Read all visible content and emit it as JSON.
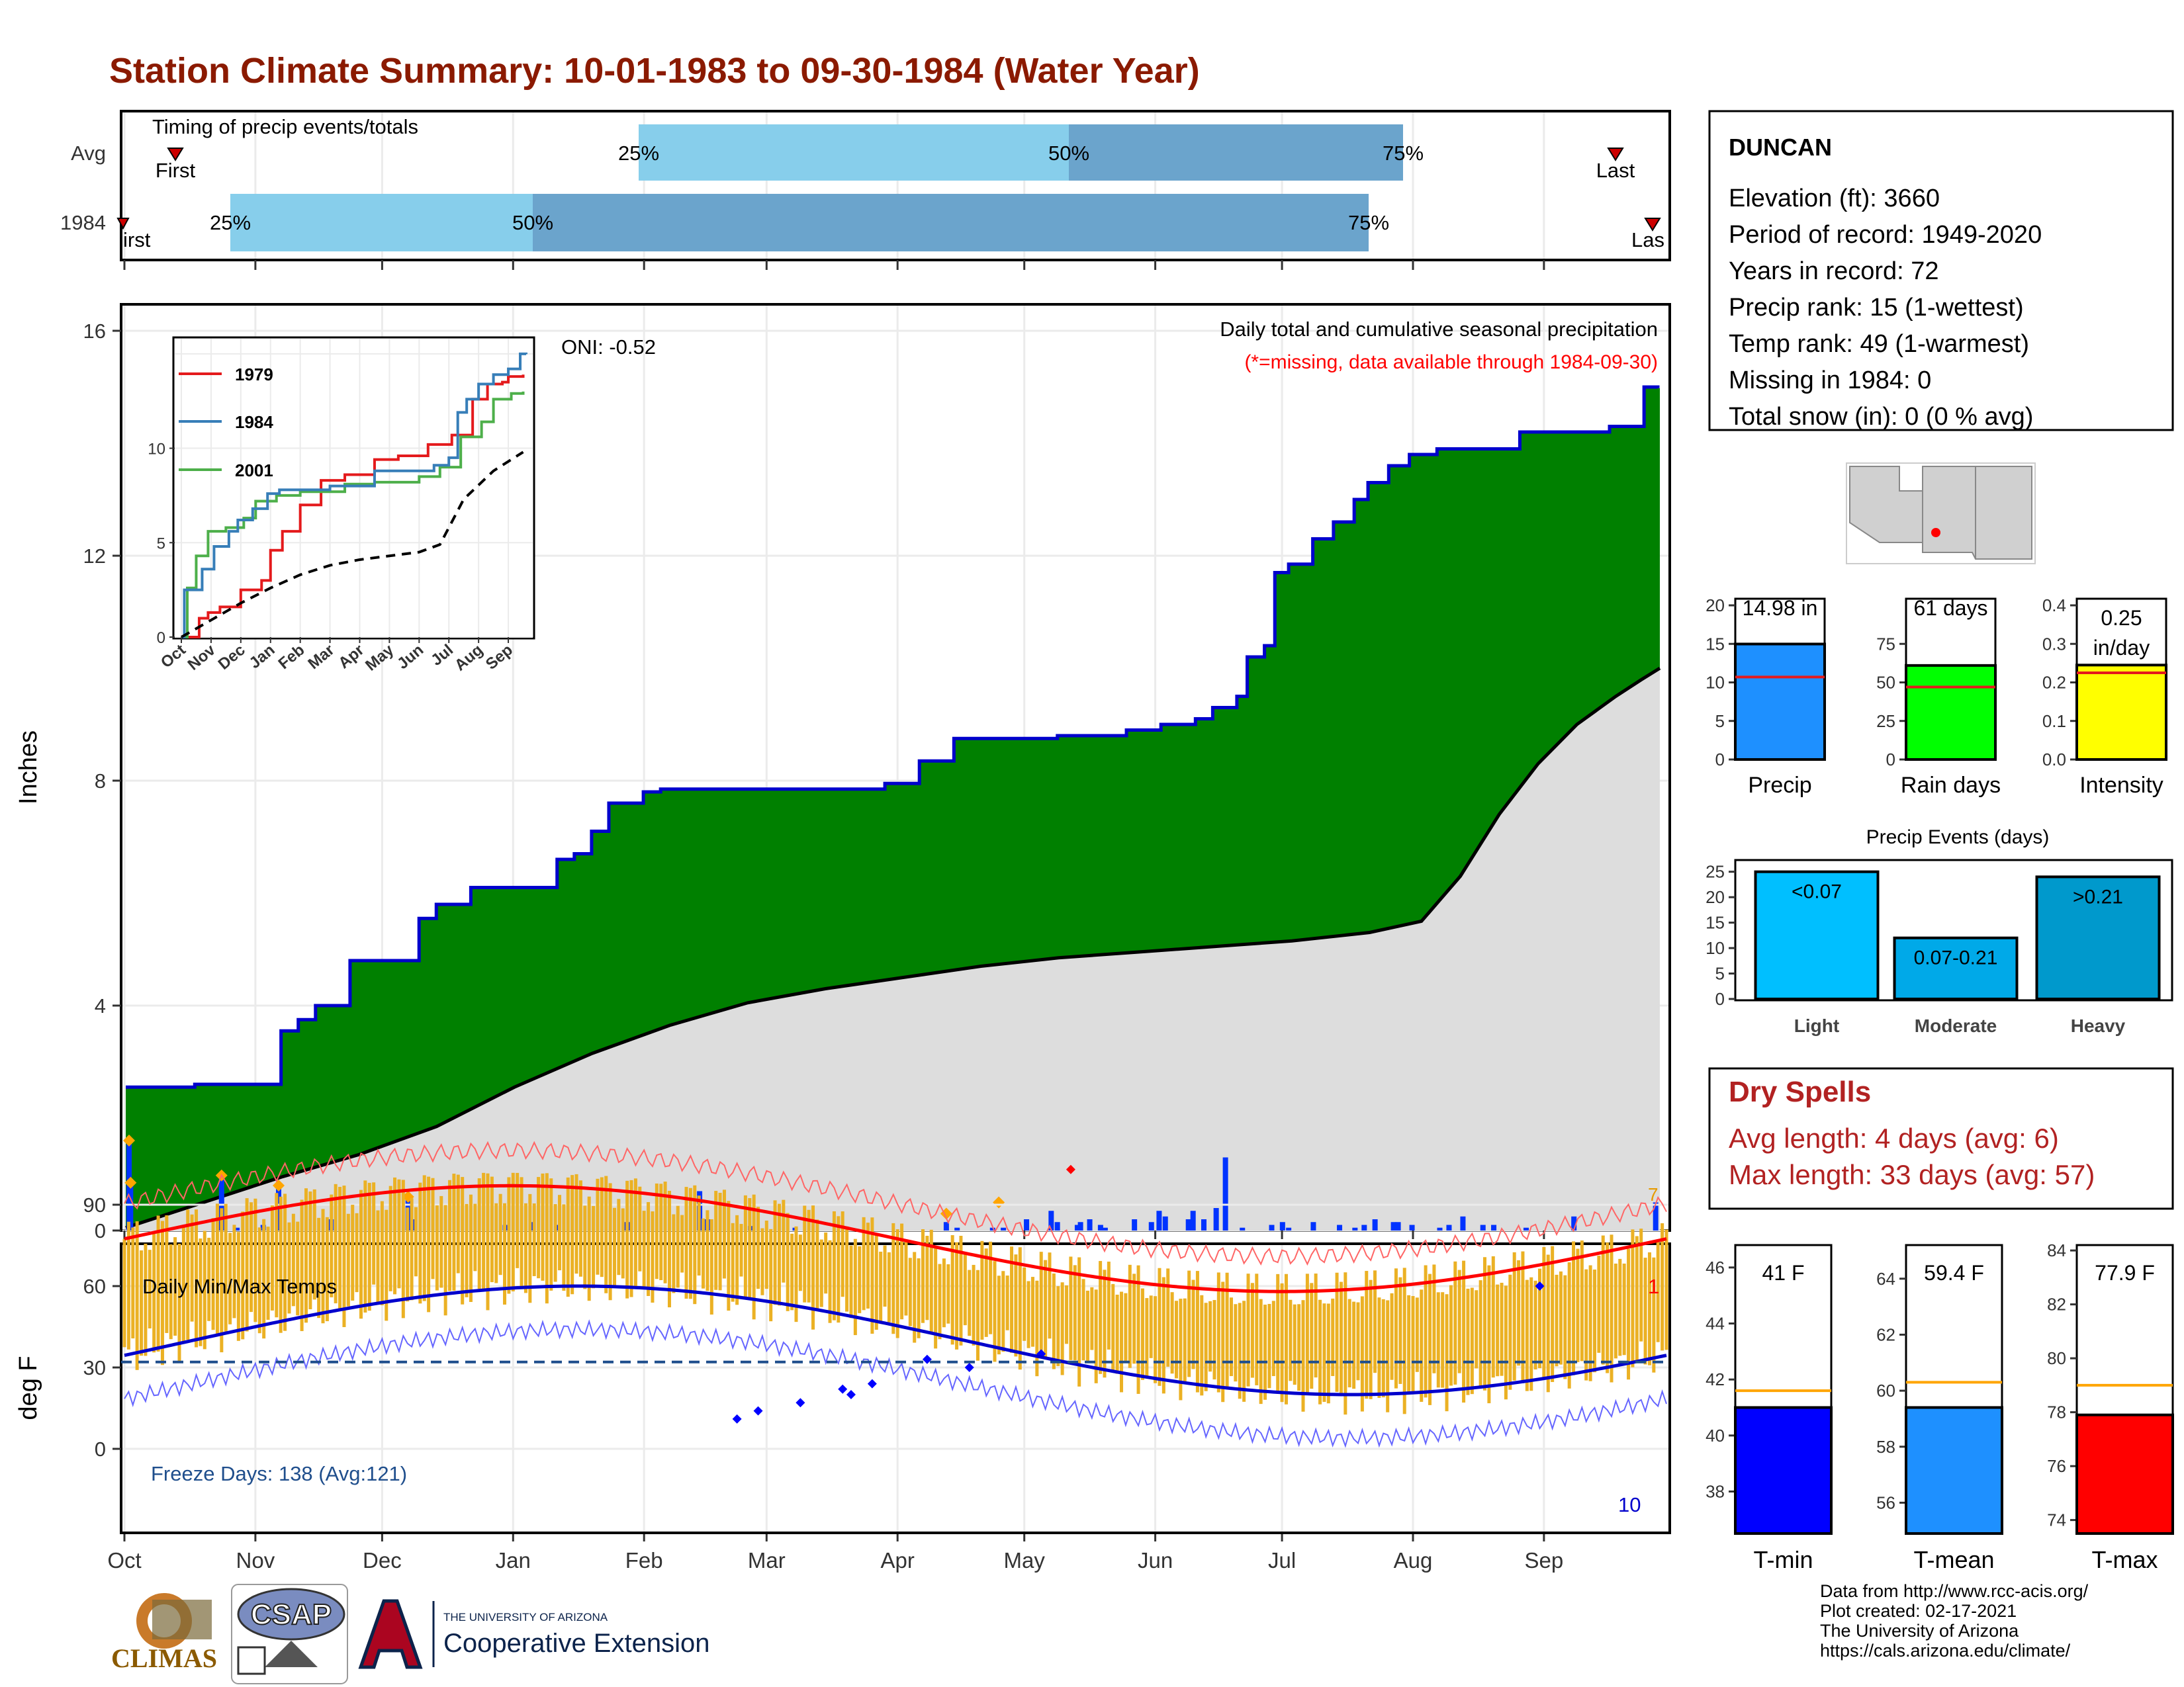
{
  "title": "Station Climate Summary: 10-01-1983 to 09-30-1984 (Water Year)",
  "month_labels": [
    "Oct",
    "Nov",
    "Dec",
    "Jan",
    "Feb",
    "Mar",
    "Apr",
    "May",
    "Jun",
    "Jul",
    "Aug",
    "Sep"
  ],
  "colors": {
    "title": "#8B1A00",
    "pct_light": "#87CEEB",
    "pct_dark": "#6BA4CC",
    "cum_fill": "#008000",
    "cum_line": "#0000CC",
    "avg_fill": "#DDDDDD",
    "daily_bar": "#0033FF",
    "temp_bar": "#EBB124",
    "tmax_avg": "#FF0000",
    "tmin_avg": "#0000CC",
    "record": "#FF0000",
    "drought_red": "#B22222"
  },
  "timing": {
    "label": "Timing of precip events/totals",
    "rows": [
      {
        "name": "Avg",
        "first_label": "First",
        "last_label": "Last",
        "pct_labels": [
          "25%",
          "50%",
          "75%"
        ]
      },
      {
        "name": "1984",
        "first_label": "irst",
        "last_label": "Las",
        "pct_labels": [
          "25%",
          "50%",
          "75%"
        ]
      }
    ]
  },
  "precip": {
    "ylabel": "Inches",
    "yticks": [
      "0",
      "4",
      "8",
      "12",
      "16"
    ],
    "oni": "ONI: -0.52",
    "caption": "Daily total and cumulative seasonal precipitation",
    "missing_note": "(*=missing, data available through 1984-09-30)",
    "corner_count": "7",
    "inset": {
      "legend": [
        "1979",
        "1984",
        "2001"
      ],
      "yticks": [
        "0",
        "5",
        "10"
      ],
      "xticks": [
        "Oct",
        "Nov",
        "Dec",
        "Jan",
        "Feb",
        "Mar",
        "Apr",
        "May",
        "Jun",
        "Jul",
        "Aug",
        "Sep"
      ]
    }
  },
  "chart_data": [
    {
      "type": "area",
      "title": "Daily total and cumulative seasonal precipitation",
      "ylabel": "Inches",
      "ylim": [
        0,
        16.5
      ],
      "cumulative_1984_steps": [
        [
          0,
          2.55
        ],
        [
          20,
          2.6
        ],
        [
          45,
          3.55
        ],
        [
          50,
          3.75
        ],
        [
          55,
          4.0
        ],
        [
          65,
          4.8
        ],
        [
          85,
          5.55
        ],
        [
          90,
          5.8
        ],
        [
          100,
          6.1
        ],
        [
          125,
          6.6
        ],
        [
          130,
          6.7
        ],
        [
          135,
          7.1
        ],
        [
          140,
          7.6
        ],
        [
          150,
          7.8
        ],
        [
          155,
          7.85
        ],
        [
          180,
          7.85
        ],
        [
          220,
          7.95
        ],
        [
          230,
          8.35
        ],
        [
          240,
          8.75
        ],
        [
          270,
          8.8
        ],
        [
          290,
          8.9
        ],
        [
          300,
          9.0
        ],
        [
          310,
          9.1
        ],
        [
          315,
          9.3
        ],
        [
          322,
          9.5
        ],
        [
          325,
          10.2
        ],
        [
          330,
          10.4
        ],
        [
          333,
          11.7
        ],
        [
          337,
          11.85
        ],
        [
          344,
          12.3
        ],
        [
          350,
          12.6
        ],
        [
          356,
          13.0
        ],
        [
          360,
          13.3
        ],
        [
          366,
          13.6
        ],
        [
          372,
          13.8
        ],
        [
          380,
          13.9
        ],
        [
          400,
          13.9
        ],
        [
          404,
          14.2
        ],
        [
          430,
          14.3
        ],
        [
          440,
          15.0
        ],
        [
          444,
          14.98
        ]
      ],
      "average_cumulative": [
        [
          0,
          0.05
        ],
        [
          30,
          0.5
        ],
        [
          60,
          0.95
        ],
        [
          90,
          1.35
        ],
        [
          120,
          1.85
        ],
        [
          150,
          2.55
        ],
        [
          180,
          3.15
        ],
        [
          210,
          3.65
        ],
        [
          240,
          4.05
        ],
        [
          270,
          4.3
        ],
        [
          300,
          4.5
        ],
        [
          330,
          4.7
        ],
        [
          360,
          4.85
        ],
        [
          390,
          4.95
        ],
        [
          420,
          5.05
        ],
        [
          450,
          5.15
        ],
        [
          480,
          5.3
        ],
        [
          500,
          5.5
        ],
        [
          515,
          6.3
        ],
        [
          530,
          7.4
        ],
        [
          545,
          8.3
        ],
        [
          560,
          9.0
        ],
        [
          575,
          9.5
        ],
        [
          585,
          9.8
        ],
        [
          592,
          10.0
        ]
      ],
      "note_x_units": "days since Oct 1 (1.32 day units); avg curve uses approximately 592 point index"
    },
    {
      "type": "bar",
      "title": "Daily Min/Max Temps",
      "ylabel": "deg F",
      "ylim": [
        -5,
        112
      ],
      "yticks": [
        0,
        30,
        60,
        90
      ],
      "freeze_line": 32
    }
  ],
  "temps": {
    "label": "Daily Min/Max Temps",
    "ylabel": "deg F",
    "yticks": [
      "0",
      "30",
      "60",
      "90"
    ],
    "freeze_text": "Freeze Days: 138 (Avg:121)",
    "record_high_count": "1",
    "record_low_count": "10"
  },
  "station": {
    "name": "DUNCAN",
    "lines": [
      "Elevation (ft): 3660",
      "Period of record: 1949-2020",
      "Years in record: 72",
      "Precip rank: 15 (1-wettest)",
      "Temp rank: 49 (1-warmest)",
      "Missing in 1984: 0",
      "Total snow (in): 0 (0 % avg)"
    ]
  },
  "mini_bars": [
    {
      "label": "Precip",
      "value_text": "14.98 in",
      "value": 14.98,
      "avg": 10.7,
      "ymax": 20,
      "yticks": [
        "0",
        "5",
        "10",
        "15",
        "20"
      ],
      "color": "#1E90FF"
    },
    {
      "label": "Rain days",
      "value_text": "61 days",
      "value": 61,
      "avg": 47,
      "ymax": 100,
      "yticks": [
        "0",
        "25",
        "50",
        "75"
      ],
      "color": "#00FF00"
    },
    {
      "label": "Intensity",
      "value_text": "0.25 in/day",
      "value_line1": "0.25",
      "value_line2": "in/day",
      "value": 0.245,
      "avg": 0.225,
      "ymax": 0.4,
      "yticks": [
        "0.0",
        "0.1",
        "0.2",
        "0.3",
        "0.4"
      ],
      "color": "#FFFF00"
    }
  ],
  "events": {
    "title": "Precip Events (days)",
    "yticks": [
      "0",
      "5",
      "10",
      "15",
      "20",
      "25"
    ],
    "bars": [
      {
        "cat": "Light",
        "label": "<0.07",
        "value": 25,
        "color": "#00BFFF"
      },
      {
        "cat": "Moderate",
        "label": "0.07-0.21",
        "value": 12,
        "color": "#00A9E8"
      },
      {
        "cat": "Heavy",
        "label": ">0.21",
        "value": 24,
        "color": "#0099CC"
      }
    ]
  },
  "dry_spells": {
    "title": "Dry Spells",
    "avg": "Avg length: 4 days (avg: 6)",
    "max": "Max length: 33 days (avg: 57)"
  },
  "temp_bars": [
    {
      "label": "T-min",
      "value_text": "41 F",
      "value": 41.0,
      "avg": 41.6,
      "ymin": 36.5,
      "ymax": 46.8,
      "yticks": [
        "38",
        "40",
        "42",
        "44",
        "46"
      ],
      "color": "#0000FF"
    },
    {
      "label": "T-mean",
      "value_text": "59.4 F",
      "value": 59.4,
      "avg": 60.3,
      "ymin": 54.9,
      "ymax": 65.2,
      "yticks": [
        "56",
        "58",
        "60",
        "62",
        "64"
      ],
      "color": "#1E90FF"
    },
    {
      "label": "T-max",
      "value_text": "77.9 F",
      "value": 77.9,
      "avg": 79.0,
      "ymin": 73.5,
      "ymax": 84.2,
      "yticks": [
        "74",
        "76",
        "78",
        "80",
        "82",
        "84"
      ],
      "color": "#FF0000"
    }
  ],
  "logos": {
    "climas": "CLIMAS",
    "csap": "CSAP",
    "ua_small": "THE UNIVERSITY OF ARIZONA",
    "ua_big": "Cooperative Extension"
  },
  "footer": [
    "Data from http://www.rcc-acis.org/",
    "Plot created: 02-17-2021",
    "The University of Arizona",
    "https://cals.arizona.edu/climate/"
  ]
}
